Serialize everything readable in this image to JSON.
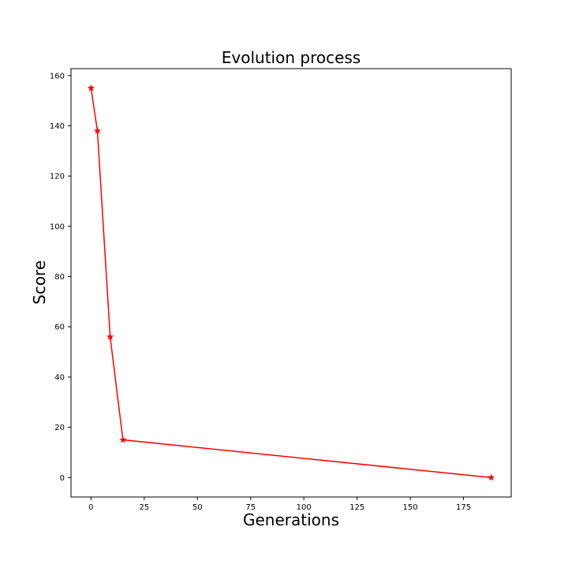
{
  "chart_data": {
    "type": "line",
    "title": "Evolution process",
    "xlabel": "Generations",
    "ylabel": "Score",
    "xlim": [
      -9.4,
      197.4
    ],
    "ylim": [
      -7.75,
      162.75
    ],
    "xticks": [
      0,
      25,
      50,
      75,
      100,
      125,
      150,
      175
    ],
    "yticks": [
      0,
      20,
      40,
      60,
      80,
      100,
      120,
      140,
      160
    ],
    "grid": false,
    "series": [
      {
        "color": "#ff0000",
        "marker": "star",
        "x": [
          0,
          3,
          9,
          15,
          188
        ],
        "y": [
          155,
          138,
          56,
          15,
          0
        ]
      }
    ]
  }
}
